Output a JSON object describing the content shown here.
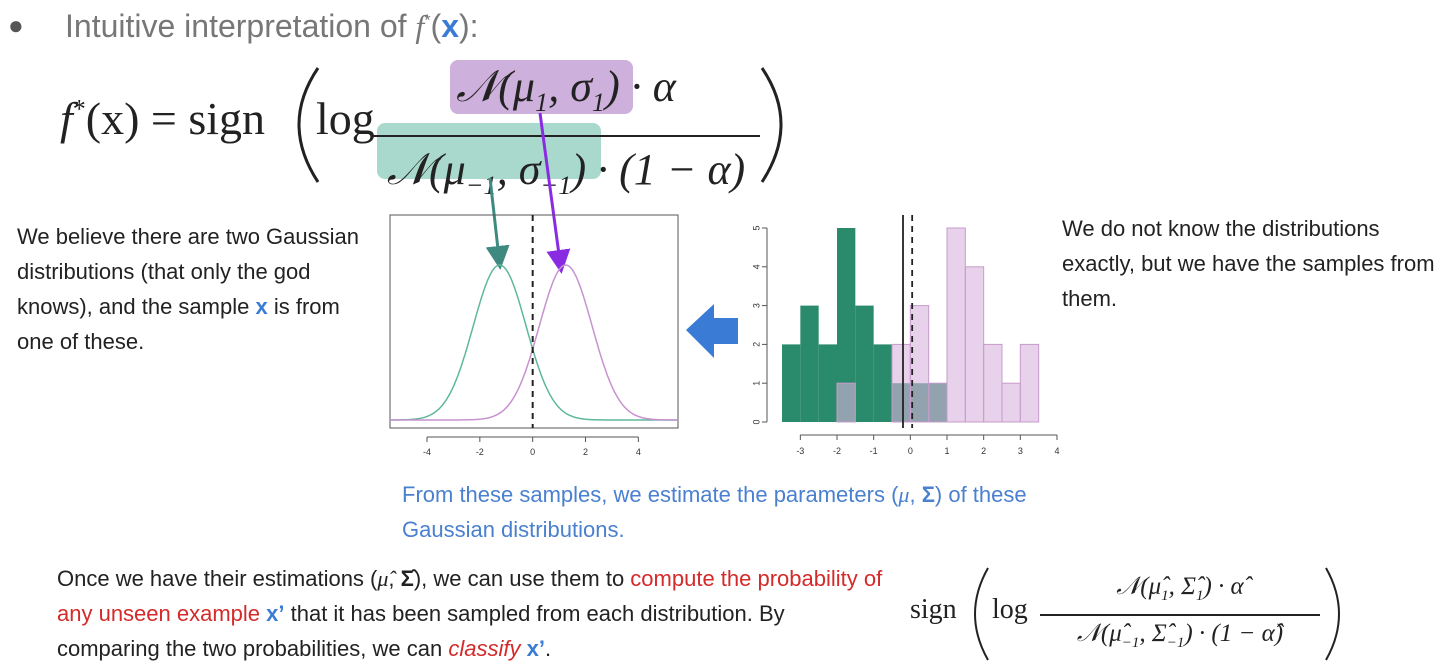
{
  "title": {
    "text": "Intuitive interpretation of ",
    "f": "f",
    "star": "*",
    "open": "(",
    "x": "x",
    "close": "):"
  },
  "formula": {
    "lhs": "f",
    "lhs_sup": "*",
    "lhs_rest": "(x) = sign",
    "log": "log",
    "num": [
      "𝒩(μ",
      "1",
      ", σ",
      "1",
      ")"
    ],
    "num_tail": "· α",
    "den": [
      "𝒩(μ",
      "−1",
      ", σ",
      "−1",
      ")"
    ],
    "den_tail": "· (1 − α)"
  },
  "left_text": {
    "before": "We believe there are two Gaussian distributions (that only the god knows), and the sample ",
    "x": "x",
    "after": " is from one of these."
  },
  "right_text": "We do not know the distributions exactly, but we have the samples from them.",
  "caption": {
    "before": "From these samples, we estimate the parameters (",
    "mu": "μ",
    "comma": ", ",
    "sigma": "Σ",
    "after": ") of these Gaussian distributions."
  },
  "bottom_text": {
    "p1": "Once we have their estimations (",
    "muhat": "μ̂",
    "p2": ", ",
    "sigmahat": "Σ̂",
    "p3": "), we can use them to ",
    "red1": "compute the probability of any unseen example ",
    "x1": "x’",
    "p4": " that it has been sampled from each distribution. By comparing the two probabilities, we can ",
    "red2": "classify",
    "p5": " ",
    "x2": "x’",
    "p6": "."
  },
  "bottom_formula": {
    "sign": "sign",
    "log": "log",
    "num": [
      "𝒩(μ̂",
      "1",
      ", Σ̂",
      "1",
      ") · α̂"
    ],
    "den": [
      "𝒩(μ̂",
      "−1",
      ", Σ̂",
      "−1",
      ") · (1 − α̂)"
    ]
  },
  "density_plot": {
    "type": "line",
    "xlim": [
      -5.4,
      5.5
    ],
    "xticks": [
      -4,
      -2,
      0,
      2,
      4
    ],
    "series": [
      {
        "color": "#5fb89a",
        "mean": -1.25,
        "sd": 1
      },
      {
        "color": "#c792cf",
        "mean": 1.25,
        "sd": 1
      }
    ],
    "vline": 0
  },
  "histogram": {
    "type": "histogram",
    "xlim": [
      -3.5,
      4
    ],
    "ylim": [
      0,
      5
    ],
    "xticks": [
      -3,
      -2,
      -1,
      0,
      1,
      2,
      3,
      4
    ],
    "yticks": [
      0,
      1,
      2,
      3,
      4,
      5
    ],
    "series": [
      {
        "color": "#2a8a6c",
        "bins": [
          -3.5,
          -3,
          -2.5,
          -2,
          -1.5,
          -1,
          -0.5,
          0,
          0.5,
          1
        ],
        "counts": [
          2,
          3,
          2,
          5,
          3,
          2,
          1,
          1,
          1
        ]
      },
      {
        "color": "#d9b3dc",
        "bins": [
          -2,
          -1.5,
          -1,
          -0.5,
          0,
          0.5,
          1,
          1.5,
          2,
          2.5,
          3,
          3.5
        ],
        "counts": [
          1,
          0,
          0,
          2,
          3,
          1,
          5,
          4,
          2,
          1,
          2
        ]
      }
    ],
    "vlines": [
      {
        "value": -0.2,
        "style": "solid"
      },
      {
        "value": 0.05,
        "style": "dashed"
      }
    ]
  }
}
